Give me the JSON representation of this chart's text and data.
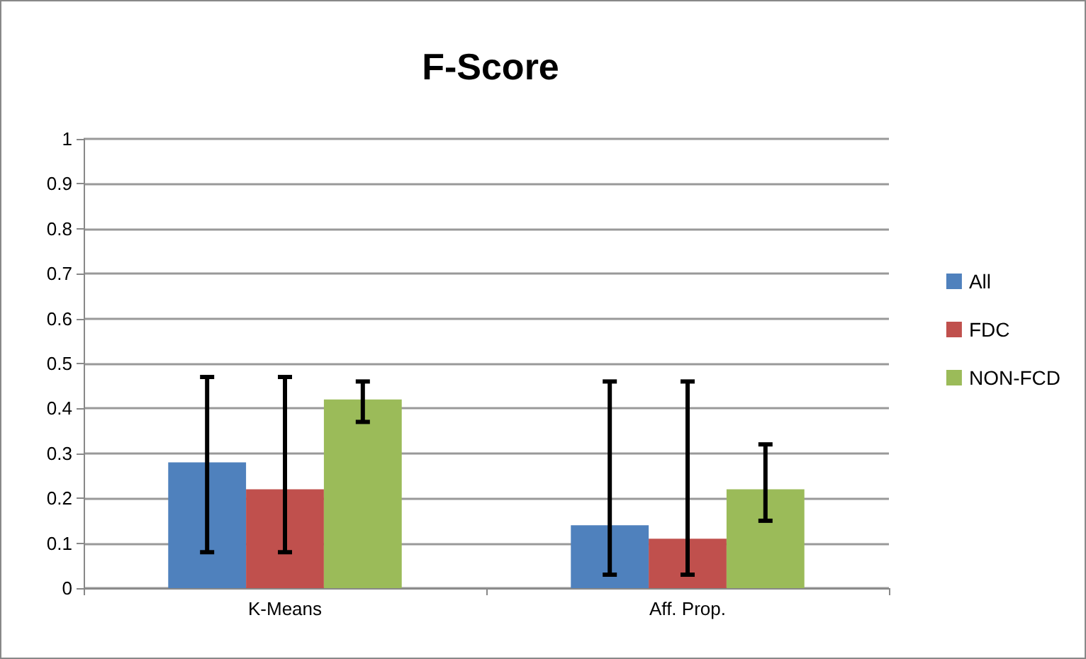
{
  "chart_data": {
    "type": "bar",
    "title": "F-Score",
    "categories": [
      "K-Means",
      "Aff. Prop."
    ],
    "series": [
      {
        "name": "All",
        "color": "#4f81bd",
        "values": [
          0.28,
          0.14
        ],
        "errors": [
          [
            0.08,
            0.47
          ],
          [
            0.03,
            0.46
          ]
        ]
      },
      {
        "name": "FDC",
        "color": "#c0504d",
        "values": [
          0.22,
          0.11
        ],
        "errors": [
          [
            0.08,
            0.47
          ],
          [
            0.03,
            0.46
          ]
        ]
      },
      {
        "name": "NON-FCD",
        "color": "#9bbb59",
        "values": [
          0.42,
          0.22
        ],
        "errors": [
          [
            0.37,
            0.46
          ],
          [
            0.15,
            0.32
          ]
        ]
      }
    ],
    "ylim": [
      0,
      1
    ],
    "yticks": [
      0,
      0.1,
      0.2,
      0.3,
      0.4,
      0.5,
      0.6,
      0.7,
      0.8,
      0.9,
      1
    ],
    "grid": "y",
    "legend": "right"
  }
}
